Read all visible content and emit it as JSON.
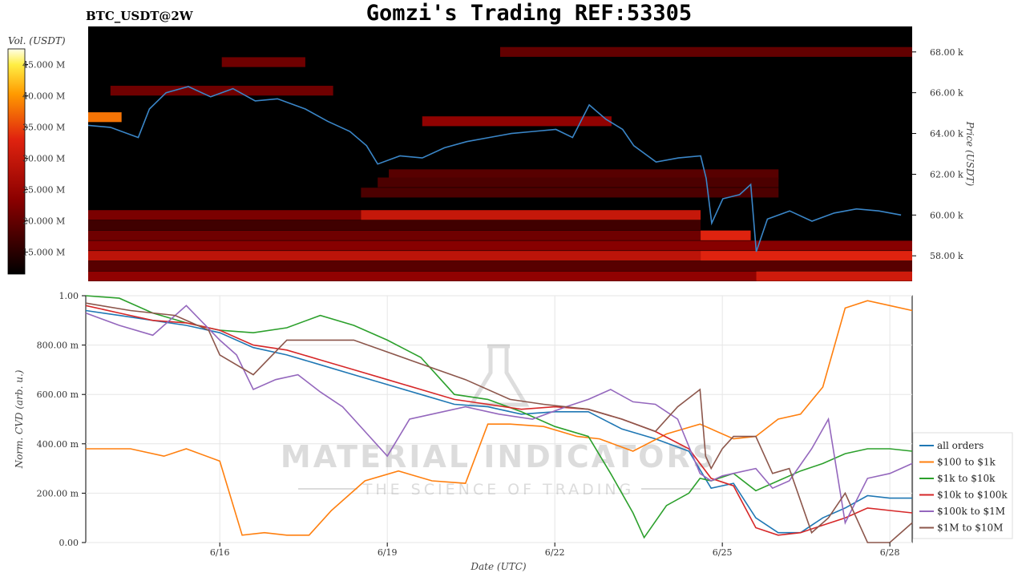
{
  "header": {
    "symbol": "BTC_USDT@2W",
    "title": "Gomzi's Trading REF:53305"
  },
  "watermark": {
    "line1": "MATERIAL INDICATORS",
    "line2": "THE SCIENCE OF TRADING"
  },
  "colors": {
    "heatmap_bg": "#000000",
    "price_line": "#3a86c8",
    "series": [
      "#1f77b4",
      "#ff7f0e",
      "#2ca02c",
      "#d62728",
      "#9467bd",
      "#8c564b"
    ]
  },
  "chart_data": [
    {
      "type": "heatmap",
      "colorbar_label": "Vol. (USDT)",
      "colorbar_ticks": [
        "45.000 M",
        "40.000 M",
        "35.000 M",
        "30.000 M",
        "25.000 M",
        "20.000 M",
        "15.000 M"
      ],
      "colorbar_values": [
        45,
        40,
        35,
        30,
        25,
        20,
        15
      ],
      "colorbar_range": [
        11.5,
        47.5
      ],
      "ylabel": "Price (USDT)",
      "y_ticks": [
        "68.00 k",
        "66.00 k",
        "64.00 k",
        "62.00 k",
        "60.00 k",
        "58.00 k"
      ],
      "y_tick_values": [
        68000,
        66000,
        64000,
        62000,
        60000,
        58000
      ],
      "ylim": [
        56750,
        69250
      ],
      "xlim": [
        13.6,
        28.4
      ],
      "price": {
        "x": [
          13.6,
          14.0,
          14.5,
          14.7,
          15.0,
          15.4,
          15.8,
          16.2,
          16.6,
          17.0,
          17.5,
          17.9,
          18.3,
          18.6,
          18.8,
          19.2,
          19.6,
          20.0,
          20.4,
          20.8,
          21.2,
          21.6,
          22.0,
          22.3,
          22.6,
          22.9,
          23.2,
          23.4,
          23.8,
          24.2,
          24.6,
          24.7,
          24.8,
          25.0,
          25.3,
          25.5,
          25.6,
          25.8,
          26.2,
          26.6,
          27.0,
          27.4,
          27.8,
          28.2
        ],
        "y": [
          64.4,
          64.3,
          63.8,
          65.2,
          66.0,
          66.3,
          65.8,
          66.2,
          65.6,
          65.7,
          65.2,
          64.6,
          64.1,
          63.4,
          62.5,
          62.9,
          62.8,
          63.3,
          63.6,
          63.8,
          64.0,
          64.1,
          64.2,
          63.8,
          65.4,
          64.7,
          64.2,
          63.4,
          62.6,
          62.8,
          62.9,
          61.8,
          59.6,
          60.8,
          61.0,
          61.5,
          58.2,
          59.8,
          60.2,
          59.7,
          60.1,
          60.3,
          60.2,
          60.0
        ],
        "scale": 1000
      },
      "bands": [
        {
          "y": 68000,
          "x0": 21.0,
          "x1": 28.4,
          "v": 20
        },
        {
          "y": 67500,
          "x0": 16.0,
          "x1": 17.5,
          "v": 21
        },
        {
          "y": 66100,
          "x0": 14.0,
          "x1": 18.0,
          "v": 21
        },
        {
          "y": 64800,
          "x0": 13.6,
          "x1": 14.2,
          "v": 38
        },
        {
          "y": 64600,
          "x0": 19.6,
          "x1": 23.0,
          "v": 24
        },
        {
          "y": 62000,
          "x0": 19.0,
          "x1": 26.0,
          "v": 19
        },
        {
          "y": 61600,
          "x0": 18.8,
          "x1": 26.0,
          "v": 18
        },
        {
          "y": 61100,
          "x0": 18.5,
          "x1": 26.0,
          "v": 18
        },
        {
          "y": 60000,
          "x0": 13.6,
          "x1": 18.5,
          "v": 22
        },
        {
          "y": 60000,
          "x0": 18.5,
          "x1": 24.6,
          "v": 30
        },
        {
          "y": 59500,
          "x0": 13.6,
          "x1": 24.6,
          "v": 17
        },
        {
          "y": 59000,
          "x0": 13.6,
          "x1": 24.6,
          "v": 21
        },
        {
          "y": 59000,
          "x0": 24.6,
          "x1": 25.5,
          "v": 33
        },
        {
          "y": 58500,
          "x0": 13.6,
          "x1": 28.4,
          "v": 23
        },
        {
          "y": 58000,
          "x0": 13.6,
          "x1": 24.6,
          "v": 29
        },
        {
          "y": 58000,
          "x0": 24.6,
          "x1": 28.4,
          "v": 33
        },
        {
          "y": 57500,
          "x0": 13.6,
          "x1": 28.4,
          "v": 19
        },
        {
          "y": 57000,
          "x0": 13.6,
          "x1": 25.6,
          "v": 24
        },
        {
          "y": 57000,
          "x0": 25.6,
          "x1": 28.4,
          "v": 31
        }
      ]
    },
    {
      "type": "line",
      "xlabel": "Date (UTC)",
      "ylabel": "Norm. CVD (arb. u.)",
      "x_ticks": [
        "6/16",
        "6/19",
        "6/22",
        "6/25",
        "6/28"
      ],
      "x_tick_values": [
        16,
        19,
        22,
        25,
        28
      ],
      "xlim": [
        13.6,
        28.4
      ],
      "y_ticks": [
        "1.00",
        "800.00 m",
        "600.00 m",
        "400.00 m",
        "200.00 m",
        "0.00"
      ],
      "y_tick_values": [
        1.0,
        0.8,
        0.6,
        0.4,
        0.2,
        0.0
      ],
      "ylim": [
        0,
        1
      ],
      "legend_position": "right",
      "series": [
        {
          "name": "all orders",
          "x": [
            13.6,
            14.2,
            14.8,
            15.4,
            16.0,
            16.6,
            17.2,
            17.8,
            18.4,
            19.0,
            19.6,
            20.2,
            20.8,
            21.4,
            22.0,
            22.6,
            23.2,
            23.8,
            24.4,
            24.8,
            25.2,
            25.6,
            26.0,
            26.4,
            26.8,
            27.2,
            27.6,
            28.0,
            28.4
          ],
          "y": [
            0.94,
            0.92,
            0.9,
            0.88,
            0.85,
            0.79,
            0.76,
            0.72,
            0.68,
            0.64,
            0.6,
            0.56,
            0.55,
            0.52,
            0.53,
            0.53,
            0.46,
            0.42,
            0.37,
            0.22,
            0.24,
            0.1,
            0.04,
            0.04,
            0.1,
            0.14,
            0.19,
            0.18,
            0.18
          ]
        },
        {
          "name": "$100 to $1k",
          "x": [
            13.6,
            14.4,
            15.0,
            15.4,
            16.0,
            16.4,
            16.8,
            17.2,
            17.6,
            18.0,
            18.6,
            19.2,
            19.8,
            20.4,
            20.8,
            21.2,
            21.8,
            22.4,
            22.8,
            23.4,
            24.0,
            24.6,
            25.2,
            25.6,
            26.0,
            26.4,
            26.8,
            27.2,
            27.6,
            28.0,
            28.4
          ],
          "y": [
            0.38,
            0.38,
            0.35,
            0.38,
            0.33,
            0.03,
            0.04,
            0.03,
            0.03,
            0.13,
            0.25,
            0.29,
            0.25,
            0.24,
            0.48,
            0.48,
            0.47,
            0.43,
            0.42,
            0.37,
            0.44,
            0.48,
            0.42,
            0.43,
            0.5,
            0.52,
            0.63,
            0.95,
            0.98,
            0.96,
            0.94
          ]
        },
        {
          "name": "$1k to $10k",
          "x": [
            13.6,
            14.2,
            14.8,
            15.4,
            16.0,
            16.6,
            17.2,
            17.8,
            18.4,
            19.0,
            19.6,
            20.2,
            20.8,
            21.4,
            22.0,
            22.6,
            23.0,
            23.4,
            23.6,
            24.0,
            24.4,
            24.6,
            24.8,
            25.2,
            25.6,
            26.0,
            26.4,
            26.8,
            27.2,
            27.6,
            28.0,
            28.4
          ],
          "y": [
            1.0,
            0.99,
            0.93,
            0.89,
            0.86,
            0.85,
            0.87,
            0.92,
            0.88,
            0.82,
            0.75,
            0.6,
            0.58,
            0.53,
            0.47,
            0.43,
            0.28,
            0.12,
            0.02,
            0.15,
            0.2,
            0.26,
            0.25,
            0.28,
            0.21,
            0.25,
            0.29,
            0.32,
            0.36,
            0.38,
            0.38,
            0.37
          ]
        },
        {
          "name": "$10k to $100k",
          "x": [
            13.6,
            14.2,
            14.8,
            15.4,
            16.0,
            16.6,
            17.2,
            17.8,
            18.4,
            19.0,
            19.6,
            20.2,
            20.8,
            21.4,
            22.0,
            22.6,
            23.2,
            23.8,
            24.4,
            24.8,
            25.2,
            25.6,
            26.0,
            26.4,
            26.8,
            27.2,
            27.6,
            28.0,
            28.4
          ],
          "y": [
            0.96,
            0.93,
            0.9,
            0.89,
            0.86,
            0.8,
            0.78,
            0.74,
            0.7,
            0.66,
            0.62,
            0.58,
            0.56,
            0.54,
            0.55,
            0.54,
            0.5,
            0.45,
            0.38,
            0.26,
            0.23,
            0.06,
            0.03,
            0.04,
            0.07,
            0.1,
            0.14,
            0.13,
            0.12
          ]
        },
        {
          "name": "$100k to $1M",
          "x": [
            13.6,
            14.2,
            14.8,
            15.4,
            16.0,
            16.3,
            16.6,
            17.0,
            17.4,
            17.8,
            18.2,
            18.6,
            19.0,
            19.4,
            19.8,
            20.4,
            21.0,
            21.6,
            22.2,
            22.6,
            23.0,
            23.4,
            23.8,
            24.2,
            24.6,
            24.8,
            25.0,
            25.6,
            25.9,
            26.2,
            26.6,
            26.9,
            27.2,
            27.6,
            28.0,
            28.4
          ],
          "y": [
            0.93,
            0.88,
            0.84,
            0.96,
            0.82,
            0.76,
            0.62,
            0.66,
            0.68,
            0.61,
            0.55,
            0.45,
            0.35,
            0.5,
            0.52,
            0.55,
            0.52,
            0.5,
            0.55,
            0.58,
            0.62,
            0.57,
            0.56,
            0.5,
            0.28,
            0.25,
            0.27,
            0.3,
            0.22,
            0.25,
            0.38,
            0.5,
            0.08,
            0.26,
            0.28,
            0.32
          ]
        },
        {
          "name": "$1M to $10M",
          "x": [
            13.6,
            14.4,
            15.2,
            15.8,
            16.0,
            16.6,
            17.2,
            18.4,
            19.4,
            20.4,
            21.2,
            21.8,
            22.6,
            23.2,
            23.8,
            24.2,
            24.6,
            24.7,
            24.8,
            25.0,
            25.2,
            25.6,
            25.9,
            26.2,
            26.6,
            26.9,
            27.2,
            27.6,
            28.0,
            28.4
          ],
          "y": [
            0.97,
            0.94,
            0.92,
            0.86,
            0.76,
            0.68,
            0.82,
            0.82,
            0.74,
            0.66,
            0.58,
            0.56,
            0.54,
            0.5,
            0.45,
            0.55,
            0.62,
            0.35,
            0.3,
            0.38,
            0.43,
            0.43,
            0.28,
            0.3,
            0.04,
            0.1,
            0.2,
            0.0,
            0.0,
            0.08
          ]
        }
      ]
    }
  ]
}
